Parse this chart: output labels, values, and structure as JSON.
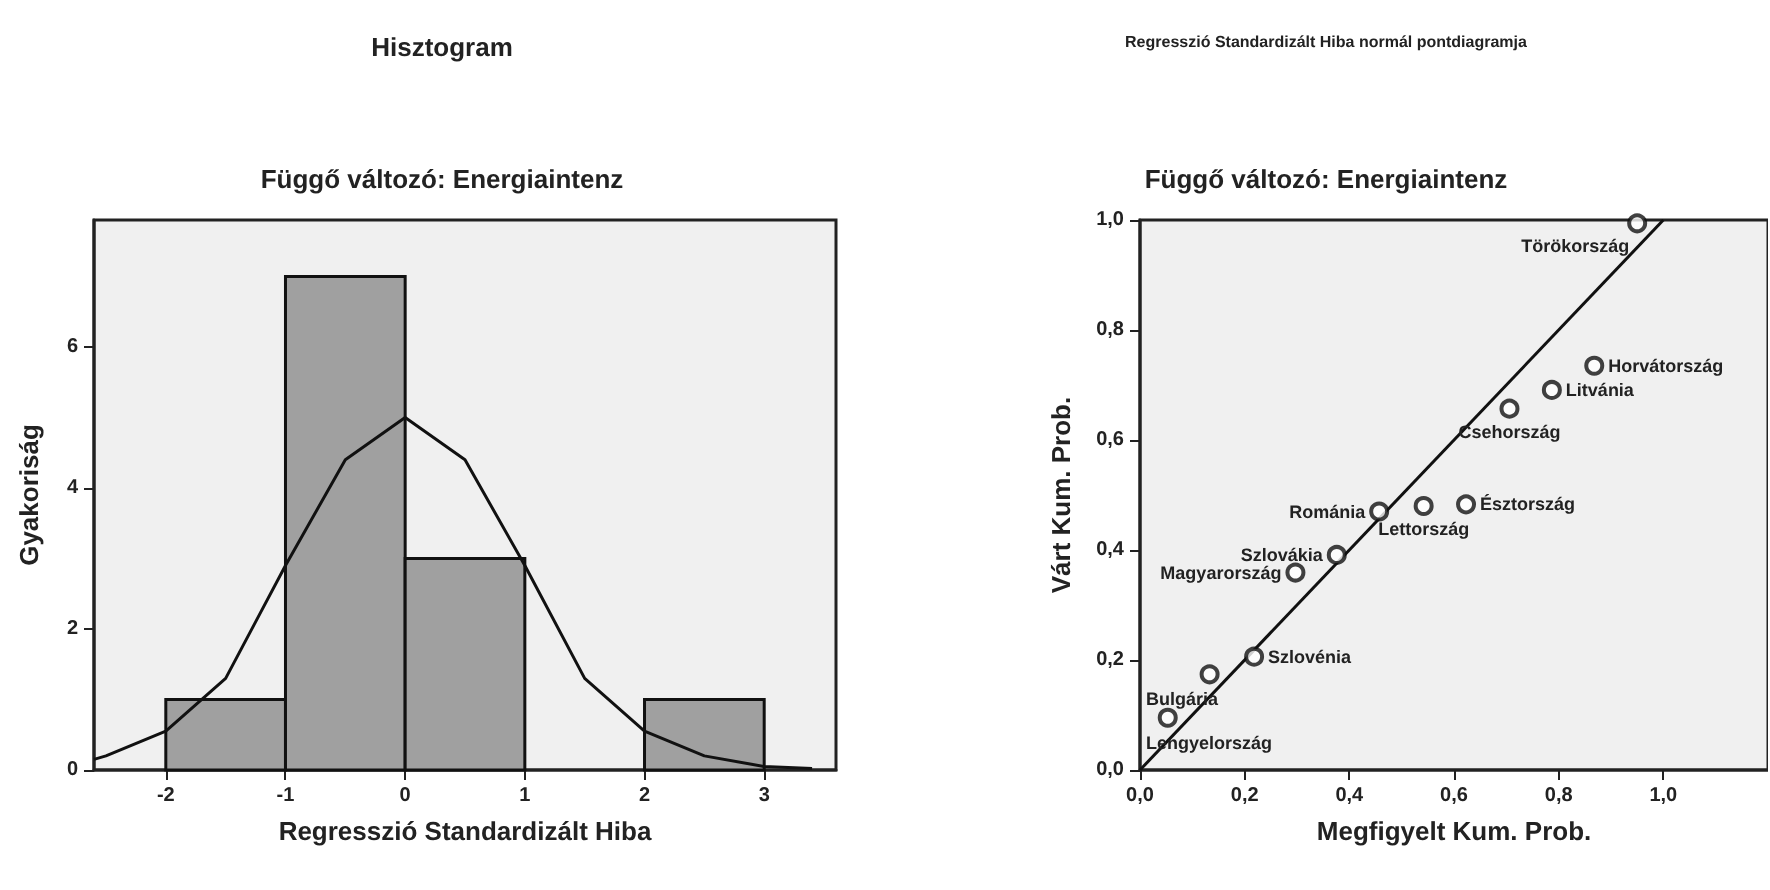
{
  "chart_data": [
    {
      "type": "histogram",
      "title": "Hisztogram",
      "subtitle": "Függő változó: Energiaintenz",
      "xlabel": "Regresszió Standardizált Hiba",
      "ylabel": "Gyakoriság",
      "bins": [
        -2,
        -1,
        0,
        1,
        2,
        3
      ],
      "values": [
        1,
        7,
        3,
        0,
        1
      ],
      "color": "#a0a0a0",
      "xlim": [
        -2.6,
        3.6
      ],
      "xticks": [
        -2,
        -1,
        0,
        1,
        2,
        3
      ],
      "ylim": [
        0,
        7.8
      ],
      "yticks": [
        0,
        2,
        4,
        6
      ],
      "grid": false,
      "series": [
        {
          "type": "line",
          "color": "#111111",
          "x": [
            -2.6,
            -2.5,
            -2,
            -1.5,
            -1,
            -0.5,
            0,
            0.5,
            1,
            1.5,
            2,
            2.5,
            3,
            3.4
          ],
          "values": [
            0.15,
            0.2,
            0.55,
            1.3,
            2.9,
            4.4,
            5.0,
            4.4,
            2.9,
            1.3,
            0.55,
            0.2,
            0.05,
            0.02
          ]
        }
      ]
    },
    {
      "type": "scatter",
      "title": "Regresszió Standardizált Hiba normál pontdiagramja",
      "subtitle": "Függő változó: Energiaintenz",
      "xlabel": "Megfigyelt Kum. Prob.",
      "ylabel": "Várt Kum. Prob.",
      "grid": false,
      "xlim": [
        0,
        1.2
      ],
      "xticks": [
        {
          "value": 0,
          "label": "0,0"
        },
        {
          "value": 0.2,
          "label": "0,2"
        },
        {
          "value": 0.4,
          "label": "0,4"
        },
        {
          "value": 0.6,
          "label": "0,6"
        },
        {
          "value": 0.8,
          "label": "0,8"
        },
        {
          "value": 1,
          "label": "1,0"
        }
      ],
      "ylim": [
        0,
        1
      ],
      "yticks": [
        {
          "value": 0,
          "label": "0,0"
        },
        {
          "value": 0.2,
          "label": "0,2"
        },
        {
          "value": 0.4,
          "label": "0,4"
        },
        {
          "value": 0.6,
          "label": "0,6"
        },
        {
          "value": 0.8,
          "label": "0,8"
        },
        {
          "value": 1,
          "label": "1,0"
        }
      ],
      "series": [
        {
          "type": "scatter",
          "marker": "circle",
          "color": "#111111",
          "x": [
            0.053,
            0.133,
            0.218,
            0.297,
            0.376,
            0.457,
            0.542,
            0.623,
            0.706,
            0.787,
            0.868,
            0.95
          ],
          "values": [
            0.095,
            0.174,
            0.206,
            0.359,
            0.391,
            0.47,
            0.48,
            0.483,
            0.657,
            0.691,
            0.735,
            0.994
          ]
        },
        {
          "type": "line",
          "color": "#111111",
          "x": [
            0,
            1
          ],
          "values": [
            0,
            1
          ]
        }
      ],
      "annotations": [
        {
          "text": "Lengyelország",
          "x": 0.053,
          "y": 0.095
        },
        {
          "text": "Bulgária",
          "x": 0.133,
          "y": 0.174
        },
        {
          "text": "Szlovénia",
          "x": 0.218,
          "y": 0.206
        },
        {
          "text": "Magyarország",
          "x": 0.297,
          "y": 0.359
        },
        {
          "text": "Szlovákia",
          "x": 0.376,
          "y": 0.391
        },
        {
          "text": "Románia",
          "x": 0.457,
          "y": 0.47
        },
        {
          "text": "Lettország",
          "x": 0.542,
          "y": 0.48
        },
        {
          "text": "Észtország",
          "x": 0.623,
          "y": 0.483
        },
        {
          "text": "Csehország",
          "x": 0.706,
          "y": 0.657
        },
        {
          "text": "Litvánia",
          "x": 0.787,
          "y": 0.691
        },
        {
          "text": "Horvátország",
          "x": 0.868,
          "y": 0.735
        },
        {
          "text": "Törökország",
          "x": 0.95,
          "y": 0.994
        }
      ]
    }
  ]
}
